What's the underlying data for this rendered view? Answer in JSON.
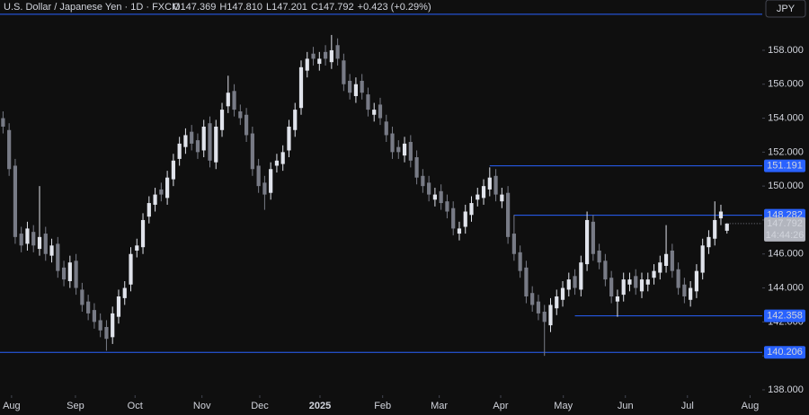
{
  "chart_data": {
    "type": "candlestick",
    "title": "U.S. Dollar / Japanese Yen · 1D · FXCM",
    "header_ohlc": [
      "O147.369",
      "H147.810",
      "L147.201",
      "C147.792"
    ],
    "change": "+0.423 (+0.29%)",
    "currency": "JPY",
    "countdown": "14:44:26",
    "up_color": "#e0e3eb",
    "down_color": "#787b86",
    "level_color": "#2962ff",
    "open": [
      154,
      153.3,
      151.2,
      147.2,
      146.6,
      147.3,
      146.3,
      147.2,
      145.9,
      146.6,
      145.2,
      144.4,
      145.6,
      143.9,
      143.2,
      142.7,
      142.1,
      141.7,
      141.1,
      142.3,
      143.4,
      144.2,
      146.2,
      146.4,
      148.2,
      148.9,
      149.8,
      149.3,
      150.4,
      151.6,
      152.3,
      153.2,
      152.7,
      152.1,
      153.7,
      151.4,
      153.3,
      154.7,
      155.6,
      154.4,
      154.2,
      153.1,
      151.2,
      150.2,
      149.6,
      151.2,
      151.3,
      152.1,
      153.3,
      154.6,
      156.8,
      157.8,
      157.2,
      157.9,
      157.3,
      158.3,
      157.4,
      156.2,
      155.3,
      156.2,
      155.4,
      154.2,
      154.8,
      153.8,
      153.1,
      152.3,
      151.8,
      152.6,
      151.7,
      150.6,
      150.2,
      149.2,
      149.7,
      149.1,
      148.7,
      147.2,
      147.6,
      148.3,
      149.2,
      149.3,
      149.8,
      150.6,
      149.1,
      149.6,
      147.2,
      146.1,
      145.2,
      143.7,
      143.2,
      142.6,
      141.8,
      142.8,
      143.3,
      143.9,
      144.7,
      143.9,
      145.4,
      147.9,
      146.2,
      145.6,
      144.6,
      143.2,
      143.6,
      144.2,
      144.7,
      143.8,
      144.2,
      144.6,
      144.9,
      145.3,
      146.2,
      145.1,
      144.2,
      143.3,
      143.8,
      144.9,
      146.4,
      146.9,
      148.1,
      147.369
    ],
    "high": [
      154.4,
      153.7,
      151.6,
      147.6,
      147.9,
      147.7,
      150,
      147.6,
      146.9,
      147,
      145.6,
      145.9,
      146,
      144.3,
      143.6,
      143.1,
      142.5,
      142.1,
      142.9,
      143.9,
      144.4,
      146.4,
      146.9,
      148.4,
      149.4,
      149.9,
      150.2,
      150.9,
      151.9,
      152.9,
      153.4,
      153.6,
      153.1,
      153.9,
      154.1,
      153.9,
      154.9,
      156.5,
      156,
      154.8,
      154.6,
      153.5,
      151.6,
      150.6,
      151.4,
      151.9,
      152.4,
      153.9,
      154.9,
      157.4,
      157.9,
      158.2,
      157.9,
      158.3,
      158.9,
      158.7,
      157.8,
      156.6,
      156.4,
      156.6,
      155.8,
      154.9,
      155.2,
      154.2,
      153.5,
      152.7,
      152.9,
      153,
      152.1,
      151,
      150.6,
      149.9,
      150.1,
      149.5,
      149.1,
      147.9,
      148.9,
      149.4,
      149.9,
      150.4,
      151.1,
      151,
      149.9,
      150,
      148.3,
      146.5,
      145.6,
      144.1,
      143.6,
      143,
      143.4,
      143.9,
      144.4,
      144.9,
      145.1,
      145.9,
      148.5,
      148.3,
      146.6,
      146,
      145,
      143.9,
      144.9,
      144.9,
      145.1,
      144.9,
      144.9,
      145.4,
      145.9,
      147.7,
      146.6,
      145.5,
      144.6,
      144.4,
      145.4,
      146.9,
      147.4,
      149.1,
      148.9,
      147.81
    ],
    "low": [
      153.1,
      150.6,
      146.6,
      146.1,
      146.2,
      146.1,
      145.9,
      145.6,
      145.5,
      144.6,
      144.1,
      144,
      143.6,
      142.6,
      142.1,
      141.6,
      141.1,
      140.3,
      140.7,
      141.9,
      143,
      143.8,
      145.8,
      146,
      147.8,
      148.5,
      149.1,
      148.9,
      150,
      151.2,
      151.9,
      152.1,
      151.6,
      151.7,
      151.1,
      151,
      152.9,
      154.3,
      154.1,
      153.6,
      152.6,
      150.6,
      149.6,
      148.6,
      149.2,
      150.8,
      150.9,
      151.7,
      152.9,
      154.2,
      156.4,
      157.1,
      156.8,
      157.1,
      156.9,
      157.1,
      155.6,
      155.1,
      154.9,
      155.1,
      154.1,
      153.8,
      153.6,
      152.6,
      151.6,
      151.6,
      151.4,
      151.1,
      150.1,
      149.6,
      149.1,
      148.8,
      148.6,
      148.1,
      147.1,
      146.8,
      147.2,
      147.9,
      148.8,
      148.9,
      149.4,
      149.1,
      148.7,
      146.6,
      145.6,
      144.6,
      143.1,
      142.6,
      142.1,
      140,
      141.4,
      142.4,
      142.9,
      143.5,
      143.6,
      143.5,
      145,
      145.6,
      145.1,
      144.1,
      143.1,
      142.3,
      143.2,
      143.8,
      143.6,
      143.4,
      143.8,
      144.2,
      144.5,
      144.9,
      144.6,
      143.6,
      143.1,
      142.9,
      143.4,
      144.5,
      146,
      146.5,
      147.7,
      147.201
    ],
    "close": [
      153.5,
      151,
      147,
      146.5,
      147.5,
      146.5,
      147,
      146,
      146.5,
      145,
      144.5,
      145.5,
      144,
      143,
      142.5,
      142,
      141.5,
      141,
      142.5,
      143.5,
      144,
      146,
      146.5,
      148,
      149,
      149.5,
      149.5,
      150.5,
      151.5,
      152.5,
      153,
      152.5,
      152,
      153.5,
      151.5,
      153.5,
      154.5,
      155.5,
      154.5,
      154,
      153,
      151,
      150,
      149.5,
      151,
      151.5,
      152,
      153.5,
      154.5,
      157,
      157.5,
      157.5,
      157.5,
      157.5,
      158,
      157.5,
      156,
      155.5,
      156,
      155.5,
      154.5,
      154.5,
      154,
      153,
      152,
      152,
      152.5,
      151.5,
      150.5,
      150,
      149.5,
      149.5,
      149,
      148.5,
      147.5,
      147.5,
      148.5,
      149,
      149.5,
      150,
      150.5,
      149.5,
      149.5,
      147,
      146,
      145,
      143.5,
      143,
      142.5,
      142,
      143,
      143.5,
      144,
      144.5,
      144,
      145.5,
      148,
      146,
      145.5,
      144.5,
      143.5,
      143.5,
      144.5,
      144.5,
      144,
      144.5,
      144.5,
      145,
      145.5,
      146,
      145,
      144,
      143.5,
      144,
      145,
      146.5,
      147,
      148,
      148.5,
      147.792
    ],
    "ylim": [
      137.68,
      160.96
    ],
    "yticks": [
      {
        "value": 138,
        "label": "138.000"
      },
      {
        "value": 140,
        "label": "140.000"
      },
      {
        "value": 142,
        "label": "142.000"
      },
      {
        "value": 144,
        "label": "144.000"
      },
      {
        "value": 146,
        "label": "146.000"
      },
      {
        "value": 148,
        "label": "148.000"
      },
      {
        "value": 150,
        "label": "150.000"
      },
      {
        "value": 152,
        "label": "152.000"
      },
      {
        "value": 154,
        "label": "154.000"
      },
      {
        "value": 156,
        "label": "156.000"
      },
      {
        "value": 158,
        "label": "158.000"
      }
    ],
    "xlim": [
      -0.5,
      124.8
    ],
    "xticks": [
      {
        "value": 1.4,
        "label": "Aug"
      },
      {
        "value": 11.9,
        "label": "Sep"
      },
      {
        "value": 21.7,
        "label": "Oct"
      },
      {
        "value": 32.7,
        "label": "Nov"
      },
      {
        "value": 42.2,
        "label": "Dec"
      },
      {
        "value": 52.1,
        "label": "2025",
        "bold": true
      },
      {
        "value": 62.4,
        "label": "Feb"
      },
      {
        "value": 71.7,
        "label": "Mar"
      },
      {
        "value": 81.8,
        "label": "Apr"
      },
      {
        "value": 92.1,
        "label": "May"
      },
      {
        "value": 102.3,
        "label": "Jun"
      },
      {
        "value": 112.5,
        "label": "Jul"
      },
      {
        "value": 122.8,
        "label": "Aug"
      }
    ],
    "levels": [
      {
        "value": 160.12,
        "from": -0.5,
        "show_label": false
      },
      {
        "value": 151.191,
        "from": 80,
        "show_label": true
      },
      {
        "value": 148.282,
        "from": 84,
        "show_label": true
      },
      {
        "value": 142.358,
        "from": 94,
        "show_label": true
      },
      {
        "value": 140.206,
        "from": -0.5,
        "show_label": true
      }
    ]
  }
}
